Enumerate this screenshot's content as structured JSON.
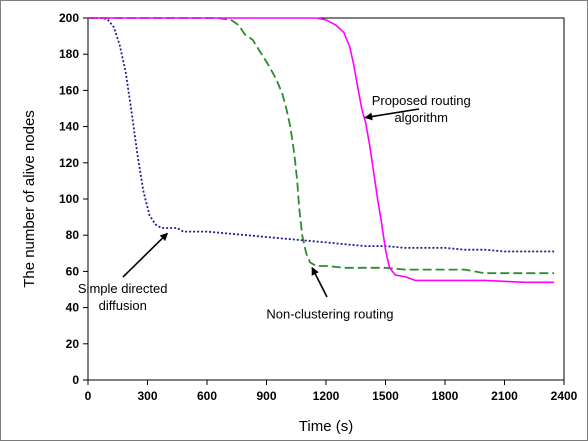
{
  "chart_data": {
    "type": "line",
    "xlabel": "Time (s)",
    "ylabel": "The number of alive nodes",
    "xlim": [
      0,
      2400
    ],
    "ylim": [
      0,
      200
    ],
    "xticks": [
      "0",
      "300",
      "600",
      "900",
      "1200",
      "1500",
      "1800",
      "2100",
      "2400"
    ],
    "yticks": [
      "0",
      "20",
      "40",
      "60",
      "80",
      "100",
      "120",
      "140",
      "160",
      "180",
      "200"
    ],
    "grid": false,
    "series": [
      {
        "name": "Simple directed diffusion",
        "color": "#1f1f8f",
        "style": "dotted",
        "points": [
          [
            0,
            200
          ],
          [
            75,
            200
          ],
          [
            100,
            199
          ],
          [
            130,
            195
          ],
          [
            160,
            185
          ],
          [
            190,
            170
          ],
          [
            220,
            148
          ],
          [
            250,
            124
          ],
          [
            280,
            104
          ],
          [
            310,
            91
          ],
          [
            340,
            86
          ],
          [
            370,
            84
          ],
          [
            410,
            84
          ],
          [
            450,
            84
          ],
          [
            480,
            82
          ],
          [
            600,
            82
          ],
          [
            700,
            81
          ],
          [
            800,
            80
          ],
          [
            900,
            79
          ],
          [
            1000,
            78
          ],
          [
            1100,
            77
          ],
          [
            1200,
            76
          ],
          [
            1300,
            75
          ],
          [
            1400,
            74
          ],
          [
            1500,
            74
          ],
          [
            1600,
            73
          ],
          [
            1700,
            73
          ],
          [
            1800,
            73
          ],
          [
            1900,
            72
          ],
          [
            2000,
            72
          ],
          [
            2100,
            71
          ],
          [
            2200,
            71
          ],
          [
            2350,
            71
          ]
        ]
      },
      {
        "name": "Non-clustering routing",
        "color": "#2e8b2e",
        "style": "dashed",
        "points": [
          [
            0,
            200
          ],
          [
            650,
            200
          ],
          [
            720,
            199
          ],
          [
            760,
            196
          ],
          [
            790,
            191
          ],
          [
            830,
            188
          ],
          [
            870,
            181
          ],
          [
            910,
            174
          ],
          [
            950,
            166
          ],
          [
            980,
            158
          ],
          [
            1000,
            150
          ],
          [
            1020,
            140
          ],
          [
            1040,
            125
          ],
          [
            1055,
            110
          ],
          [
            1065,
            95
          ],
          [
            1080,
            80
          ],
          [
            1100,
            70
          ],
          [
            1120,
            65
          ],
          [
            1150,
            63
          ],
          [
            1200,
            63
          ],
          [
            1300,
            62
          ],
          [
            1400,
            62
          ],
          [
            1500,
            62
          ],
          [
            1600,
            61
          ],
          [
            1800,
            61
          ],
          [
            1900,
            61
          ],
          [
            2000,
            59
          ],
          [
            2350,
            59
          ]
        ]
      },
      {
        "name": "Proposed routing algorithm",
        "color": "#ff00ff",
        "style": "solid",
        "points": [
          [
            0,
            200
          ],
          [
            1150,
            200
          ],
          [
            1200,
            199
          ],
          [
            1250,
            196
          ],
          [
            1290,
            192
          ],
          [
            1320,
            184
          ],
          [
            1340,
            174
          ],
          [
            1360,
            162
          ],
          [
            1380,
            150
          ],
          [
            1400,
            142
          ],
          [
            1420,
            130
          ],
          [
            1440,
            115
          ],
          [
            1460,
            100
          ],
          [
            1480,
            87
          ],
          [
            1500,
            72
          ],
          [
            1520,
            62
          ],
          [
            1550,
            58
          ],
          [
            1600,
            57
          ],
          [
            1650,
            55
          ],
          [
            1700,
            55
          ],
          [
            1800,
            55
          ],
          [
            2000,
            55
          ],
          [
            2200,
            54
          ],
          [
            2350,
            54
          ]
        ]
      }
    ],
    "annotations": [
      {
        "lines": [
          "Proposed routing",
          "algorithm"
        ],
        "x": 1680,
        "y": 152,
        "arrow_to": [
          1398,
          145
        ]
      },
      {
        "lines": [
          "Simple directed",
          "diffusion"
        ],
        "x": 175,
        "y": 48,
        "arrow_to": [
          400,
          81
        ]
      },
      {
        "lines": [
          "Non-clustering routing"
        ],
        "x": 1220,
        "y": 34,
        "arrow_to": [
          1130,
          62
        ]
      }
    ]
  }
}
